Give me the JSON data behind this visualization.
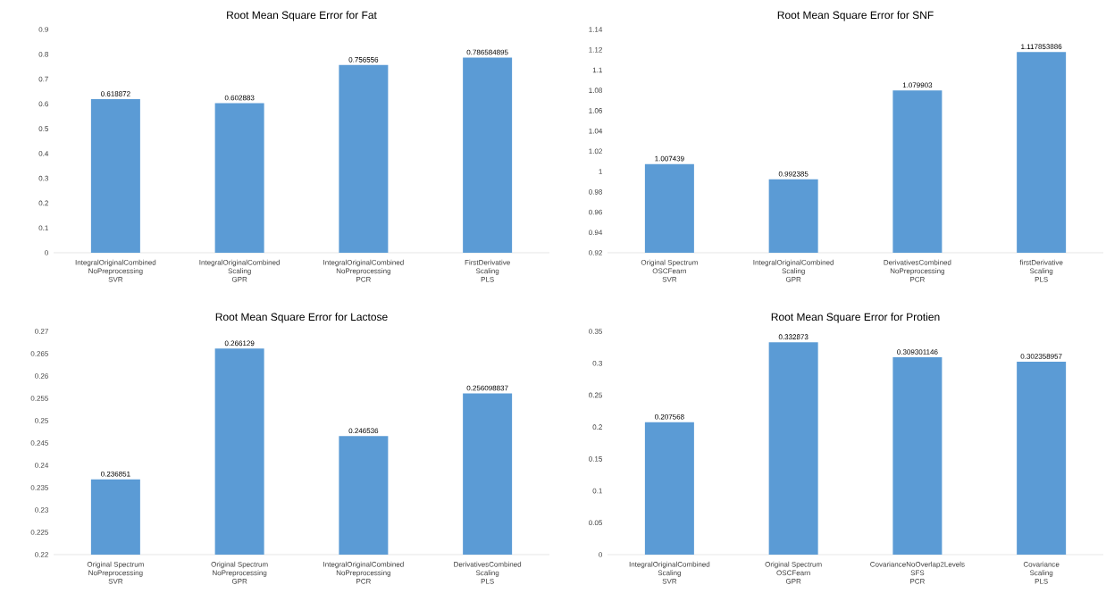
{
  "chart_data": [
    {
      "type": "bar",
      "title": "Root Mean Square Error for Fat",
      "categories": [
        "IntegralOriginalCombined\nNoPreprocessing\nSVR",
        "IntegralOriginalCombined\nScaling\nGPR",
        "IntegralOriginalCombined\nNoPreprocessing\nPCR",
        "FirstDerivative\nScaling\nPLS"
      ],
      "values": [
        0.618872,
        0.602883,
        0.756556,
        0.786584895
      ],
      "color": "#5b9bd5",
      "ylim": [
        0,
        0.9
      ],
      "yticks": [
        0,
        0.1,
        0.2,
        0.3,
        0.4,
        0.5,
        0.6,
        0.7,
        0.8,
        0.9
      ],
      "data_labels": true
    },
    {
      "type": "bar",
      "title": "Root Mean Square Error for SNF",
      "categories": [
        "Original Spectrum\nOSCFearn\nSVR",
        "IntegralOriginalCombined\nScaling\nGPR",
        "DerivativesCombined\nNoPreprocessing\nPCR",
        "firstDerivative\nScaling\nPLS"
      ],
      "values": [
        1.007439,
        0.992385,
        1.079903,
        1.117853886
      ],
      "color": "#5b9bd5",
      "ylim": [
        0.92,
        1.14
      ],
      "yticks": [
        0.92,
        0.94,
        0.96,
        0.98,
        1,
        1.02,
        1.04,
        1.06,
        1.08,
        1.1,
        1.12,
        1.14
      ],
      "data_labels": true
    },
    {
      "type": "bar",
      "title": "Root Mean Square Error for Lactose",
      "categories": [
        "Original Spectrum\nNoPreprocessing\nSVR",
        "Original Spectrum\nNoPreprocessing\nGPR",
        "IntegralOriginalCombined\nNoPreprocessing\nPCR",
        "DerivativesCombined\nScaling\nPLS"
      ],
      "values": [
        0.236851,
        0.266129,
        0.246536,
        0.256098837
      ],
      "color": "#5b9bd5",
      "ylim": [
        0.22,
        0.27
      ],
      "yticks": [
        0.22,
        0.225,
        0.23,
        0.235,
        0.24,
        0.245,
        0.25,
        0.255,
        0.26,
        0.265,
        0.27
      ],
      "data_labels": true
    },
    {
      "type": "bar",
      "title": "Root Mean Square Error for Protien",
      "categories": [
        "IntegralOriginalCombined\nScaling\nSVR",
        "Original Spectrum\nOSCFearn\nGPR",
        "CovarianceNoOverlap2Levels\nSFS\nPCR",
        "Covariance\nScaling\nPLS"
      ],
      "values": [
        0.207568,
        0.332873,
        0.309301146,
        0.302358957
      ],
      "color": "#5b9bd5",
      "ylim": [
        0,
        0.35
      ],
      "yticks": [
        0,
        0.05,
        0.1,
        0.15,
        0.2,
        0.25,
        0.3,
        0.35
      ],
      "data_labels": true
    }
  ]
}
